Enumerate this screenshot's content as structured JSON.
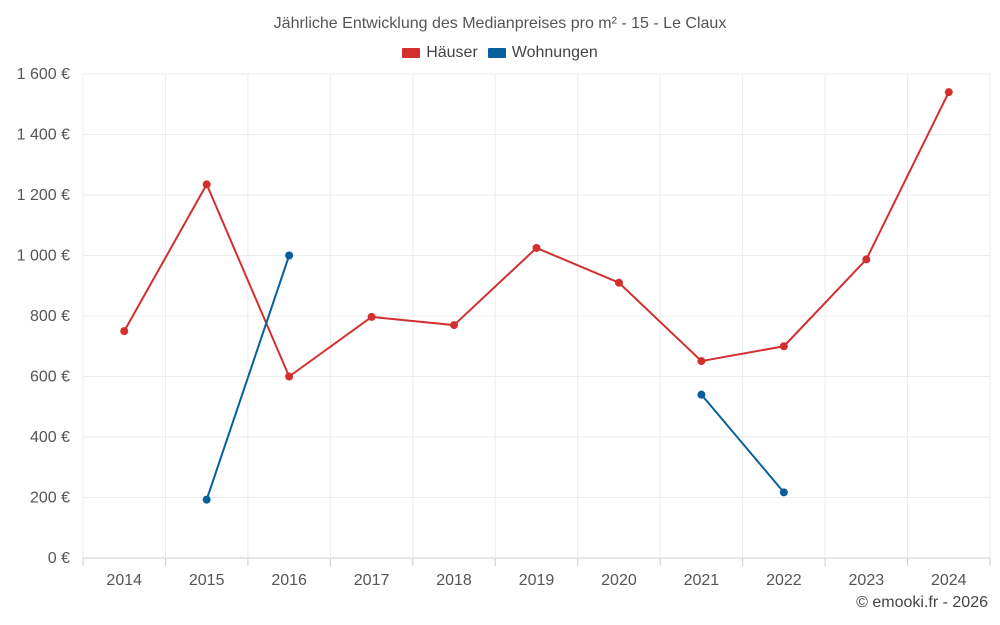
{
  "chart_data": {
    "type": "line",
    "title": "Jährliche Entwicklung des Medianpreises pro m² - 15 - Le Claux",
    "xlabel": "",
    "ylabel": "",
    "ylim": [
      0,
      1600
    ],
    "yticks": [
      0,
      200,
      400,
      600,
      800,
      1000,
      1200,
      1400,
      1600
    ],
    "ytick_labels": [
      "0 €",
      "200 €",
      "400 €",
      "600 €",
      "800 €",
      "1 000 €",
      "1 200 €",
      "1 400 €",
      "1 600 €"
    ],
    "categories": [
      "2014",
      "2015",
      "2016",
      "2017",
      "2018",
      "2019",
      "2020",
      "2021",
      "2022",
      "2023",
      "2024"
    ],
    "series": [
      {
        "name": "Häuser",
        "color": "#d32f2f",
        "values": [
          750,
          1235,
          600,
          797,
          770,
          1025,
          910,
          651,
          700,
          987,
          1540
        ]
      },
      {
        "name": "Wohnungen",
        "color": "#07609c",
        "values": [
          null,
          193,
          1000,
          null,
          null,
          null,
          null,
          540,
          217,
          null,
          null
        ]
      }
    ],
    "legend_position": "top-center",
    "grid": true
  },
  "footer": {
    "credit": "© emooki.fr - 2026"
  }
}
